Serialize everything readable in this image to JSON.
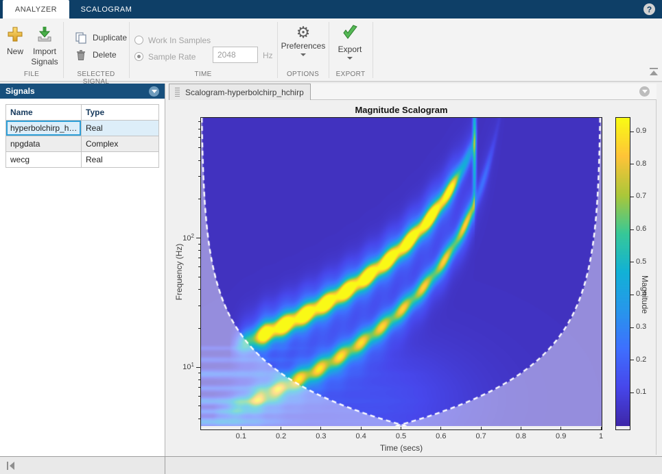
{
  "ribbon": {
    "tabs": [
      {
        "label": "ANALYZER"
      },
      {
        "label": "SCALOGRAM"
      }
    ],
    "help_icon": "?",
    "file": {
      "section": "FILE",
      "new_label": "New",
      "import_label": "Import Signals"
    },
    "selected_signal": {
      "section": "SELECTED SIGNAL",
      "duplicate_label": "Duplicate",
      "delete_label": "Delete"
    },
    "time": {
      "section": "TIME",
      "work_in_samples_label": "Work In Samples",
      "work_in_samples_selected": false,
      "sample_rate_label": "Sample Rate",
      "sample_rate_selected": true,
      "sample_rate_value": "2048",
      "unit": "Hz"
    },
    "options": {
      "section": "OPTIONS",
      "preferences_label": "Preferences"
    },
    "export_group": {
      "section": "EXPORT",
      "export_label": "Export"
    }
  },
  "signals_panel": {
    "title": "Signals",
    "columns": [
      "Name",
      "Type"
    ],
    "rows": [
      {
        "name": "hyperbolchirp_h…",
        "type": "Real",
        "selected": true
      },
      {
        "name": "npgdata",
        "type": "Complex",
        "selected": false
      },
      {
        "name": "wecg",
        "type": "Real",
        "selected": false
      }
    ]
  },
  "document": {
    "tab_label": "Scalogram-hyperbolchirp_hchirp"
  },
  "chart_data": {
    "type": "heatmap",
    "title": "Magnitude Scalogram",
    "xlabel": "Time (secs)",
    "ylabel": "Frequency (Hz)",
    "colorbar_label": "Magnitude",
    "xlim": [
      0,
      1
    ],
    "x_ticks": [
      0.1,
      0.2,
      0.3,
      0.4,
      0.5,
      0.6,
      0.7,
      0.8,
      0.9,
      1
    ],
    "yscale": "log",
    "ylim_hz": [
      3.55,
      853
    ],
    "y_major_ticks": [
      {
        "f": 100,
        "base": "10",
        "exp": "2"
      },
      {
        "f": 10,
        "base": "10",
        "exp": "1"
      }
    ],
    "y_minor_ticks": [
      4,
      5,
      6,
      7,
      8,
      9,
      20,
      30,
      40,
      50,
      60,
      70,
      80,
      90,
      200,
      300,
      400,
      500,
      600,
      700,
      800
    ],
    "colorbar_ticks": [
      0.1,
      0.2,
      0.3,
      0.4,
      0.5,
      0.6,
      0.7,
      0.8,
      0.9
    ],
    "colorbar_range": [
      0,
      0.942
    ],
    "colormap": "parula",
    "parula_anchors": [
      [
        0.2422,
        0.1504,
        0.6603
      ],
      [
        0.278,
        0.2782,
        0.9221
      ],
      [
        0.244,
        0.4358,
        0.9988
      ],
      [
        0.154,
        0.5902,
        0.9218
      ],
      [
        0.0689,
        0.6948,
        0.8394
      ],
      [
        0.2161,
        0.7843,
        0.5923
      ],
      [
        0.672,
        0.7793,
        0.2227
      ],
      [
        0.997,
        0.7659,
        0.2199
      ],
      [
        0.9769,
        0.9839,
        0.0805
      ]
    ],
    "scalogram": {
      "description": "CWT magnitude of a two-component hyperbolic chirp, fs = 2048 Hz",
      "background_level": 0.042,
      "components": [
        {
          "coef": 7.5,
          "singularity": 0.8,
          "amp": 0.95,
          "fade_in_start": 0.07,
          "fade_in_len": 0.09,
          "hf_fade_lgf": 2.18,
          "hf_fade_w": 0.42,
          "post_cutoff": "die"
        },
        {
          "coef": 2.5,
          "singularity": 0.8,
          "amp": 0.62,
          "fade_in_start": 0.03,
          "fade_in_len": 0.12,
          "hf_fade_lgf": 2.24,
          "hf_fade_w": 0.5,
          "post_cutoff": "dim"
        }
      ],
      "cutoff_time": 0.683,
      "post_cutoff_factor": 0.3,
      "ridge_sigma": 0.075,
      "skirt_sigma": 0.2,
      "skirt_amp": 0.32,
      "mod_period": 0.052,
      "mod_depth": 0.14,
      "vertical_edge": {
        "t": 0.683,
        "sigma_t": 0.0045,
        "amp": 0.5,
        "center_lgf": 2.72,
        "sigma_lgf": 0.45
      },
      "center_glow": {
        "t": 0.42,
        "sigma_t": 0.25,
        "lgf": 0.75,
        "sigma_lgf": 0.45,
        "amp": 0.1
      },
      "low_freq_stripes": [
        {
          "lgf": 0.58,
          "amp": 0.3,
          "w": 0.03
        },
        {
          "lgf": 0.66,
          "amp": 0.2,
          "w": 0.022
        },
        {
          "lgf": 0.74,
          "amp": 0.26,
          "w": 0.028
        },
        {
          "lgf": 0.84,
          "amp": 0.16,
          "w": 0.022
        },
        {
          "lgf": 0.95,
          "amp": 0.22,
          "w": 0.03
        },
        {
          "lgf": 1.06,
          "amp": 0.13,
          "w": 0.022
        },
        {
          "lgf": 1.15,
          "amp": 0.09,
          "w": 0.018
        }
      ],
      "stripe_time_decay": 0.16,
      "coi": {
        "constant": 1.8,
        "outside_whiten": 0.44,
        "dash": [
          7,
          5
        ],
        "line_width": 2.4,
        "color": "#ffffff"
      }
    }
  },
  "colors": {
    "titlebar": "#0e3f67",
    "panel_header": "#174f7c",
    "selection_bg": "#ddeef9",
    "selection_border": "#2e9fd8",
    "toolbar_bg": "#f3f3f3",
    "figure_bg": "#f0f0f0",
    "accent_gold": "#e8b42a",
    "accent_green": "#4caf50"
  }
}
